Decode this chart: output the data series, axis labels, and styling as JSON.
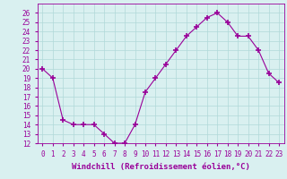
{
  "x": [
    0,
    1,
    2,
    3,
    4,
    5,
    6,
    7,
    8,
    9,
    10,
    11,
    12,
    13,
    14,
    15,
    16,
    17,
    18,
    19,
    20,
    21,
    22,
    23
  ],
  "y": [
    20,
    19,
    14.5,
    14,
    14,
    14,
    13,
    12,
    12,
    14,
    17.5,
    19,
    20.5,
    22,
    23.5,
    24.5,
    25.5,
    26,
    25,
    23.5,
    23.5,
    22,
    19.5,
    18.5
  ],
  "line_color": "#990099",
  "marker": "+",
  "marker_size": 4,
  "bg_color": "#d9f0f0",
  "grid_color": "#b0d8d8",
  "ylim": [
    12,
    27
  ],
  "yticks": [
    12,
    13,
    14,
    15,
    16,
    17,
    18,
    19,
    20,
    21,
    22,
    23,
    24,
    25,
    26
  ],
  "xlim": [
    -0.5,
    23.5
  ],
  "xticks": [
    0,
    1,
    2,
    3,
    4,
    5,
    6,
    7,
    8,
    9,
    10,
    11,
    12,
    13,
    14,
    15,
    16,
    17,
    18,
    19,
    20,
    21,
    22,
    23
  ],
  "xlabel": "Windchill (Refroidissement éolien,°C)",
  "xlabel_color": "#990099",
  "tick_color": "#990099",
  "axis_label_fontsize": 6.5,
  "tick_fontsize": 5.5,
  "line_width": 0.8,
  "marker_color": "#990099"
}
